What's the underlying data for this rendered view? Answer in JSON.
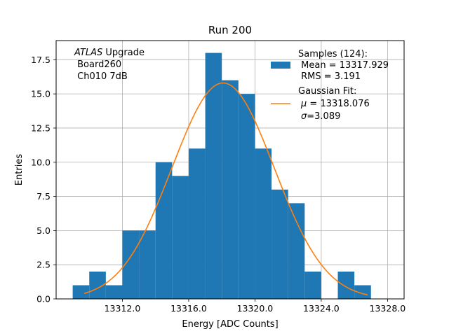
{
  "chart_data": {
    "type": "bar",
    "title": "Run 200",
    "xlabel": "Energy [ADC Counts]",
    "ylabel": "Entries",
    "xlim": [
      13308.0,
      13329.0
    ],
    "ylim": [
      0,
      18.9
    ],
    "grid": true,
    "xticks": [
      13312.0,
      13316.0,
      13320.0,
      13324.0,
      13328.0
    ],
    "xtick_labels": [
      "13312.0",
      "13316.0",
      "13320.0",
      "13324.0",
      "13328.0"
    ],
    "yticks": [
      0.0,
      2.5,
      5.0,
      7.5,
      10.0,
      12.5,
      15.0,
      17.5
    ],
    "ytick_labels": [
      "0.0",
      "2.5",
      "5.0",
      "7.5",
      "10.0",
      "12.5",
      "15.0",
      "17.5"
    ],
    "bin_width": 1.0,
    "bin_starts": [
      13309,
      13310,
      13311,
      13312,
      13313,
      13314,
      13315,
      13316,
      13317,
      13318,
      13319,
      13320,
      13321,
      13322,
      13323,
      13324,
      13325,
      13326
    ],
    "values": [
      1,
      2,
      1,
      5,
      5,
      10,
      9,
      11,
      18,
      16,
      15,
      11,
      8,
      7,
      2,
      0,
      2,
      1
    ],
    "bar_color": "#1f77b4",
    "fit": {
      "type": "gaussian",
      "mu": 13318.076,
      "sigma": 3.089,
      "amplitude": 15.8,
      "x_range": [
        13309.7,
        13326.8
      ],
      "color": "#ff7f0e"
    },
    "legend": {
      "placement": "top-right",
      "samples": [
        "Samples (124):",
        " Mean = 13317.929",
        " RMS = 3.191"
      ],
      "fit_title": "Gaussian Fit:",
      "fit_mu_symbol": "μ",
      "fit_mu_value": " = 13318.076",
      "fit_sigma_symbol": "σ",
      "fit_sigma_value": "=3.089"
    },
    "annotation": {
      "placement": "top-left",
      "italic": "ATLAS",
      "rest": " Upgrade",
      "line2": " Board260",
      "line3": " Ch010 7dB"
    }
  }
}
